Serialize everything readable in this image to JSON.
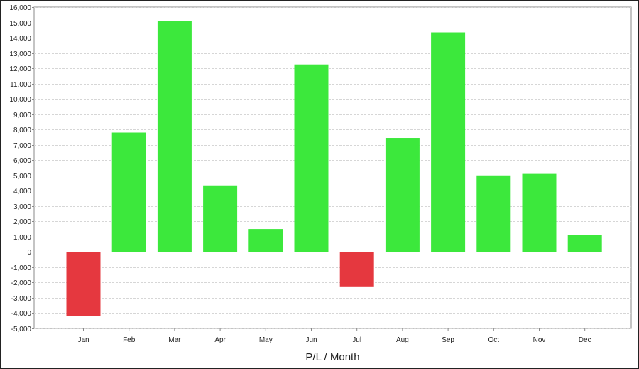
{
  "chart_data": {
    "type": "bar",
    "title": "",
    "xlabel": "P/L / Month",
    "ylabel": "",
    "categories": [
      "Jan",
      "Feb",
      "Mar",
      "Apr",
      "May",
      "Jun",
      "Jul",
      "Aug",
      "Sep",
      "Oct",
      "Nov",
      "Dec"
    ],
    "values": [
      -4200,
      7800,
      15100,
      4350,
      1500,
      12250,
      -2250,
      7450,
      14350,
      5000,
      5100,
      1100
    ],
    "ylim": [
      -5000,
      16000
    ],
    "y_ticks": [
      16000,
      15000,
      14000,
      13000,
      12000,
      11000,
      10000,
      9000,
      8000,
      7000,
      6000,
      5000,
      4000,
      3000,
      2000,
      1000,
      0,
      -1000,
      -2000,
      -3000,
      -4000,
      -5000
    ],
    "y_tick_labels": [
      "16,000",
      "15,000",
      "14,000",
      "13,000",
      "12,000",
      "11,000",
      "10,000",
      "9,000",
      "8,000",
      "7,000",
      "6,000",
      "5,000",
      "4,000",
      "3,000",
      "2,000",
      "1,000",
      "0",
      "-1,000",
      "-2,000",
      "-3,000",
      "-4,000",
      "-5,000"
    ],
    "grid": true,
    "legend": false,
    "colors": {
      "positive": "#3ce83c",
      "negative": "#e5383f",
      "grid": "#d6d6d6",
      "axis": "#888888"
    }
  }
}
